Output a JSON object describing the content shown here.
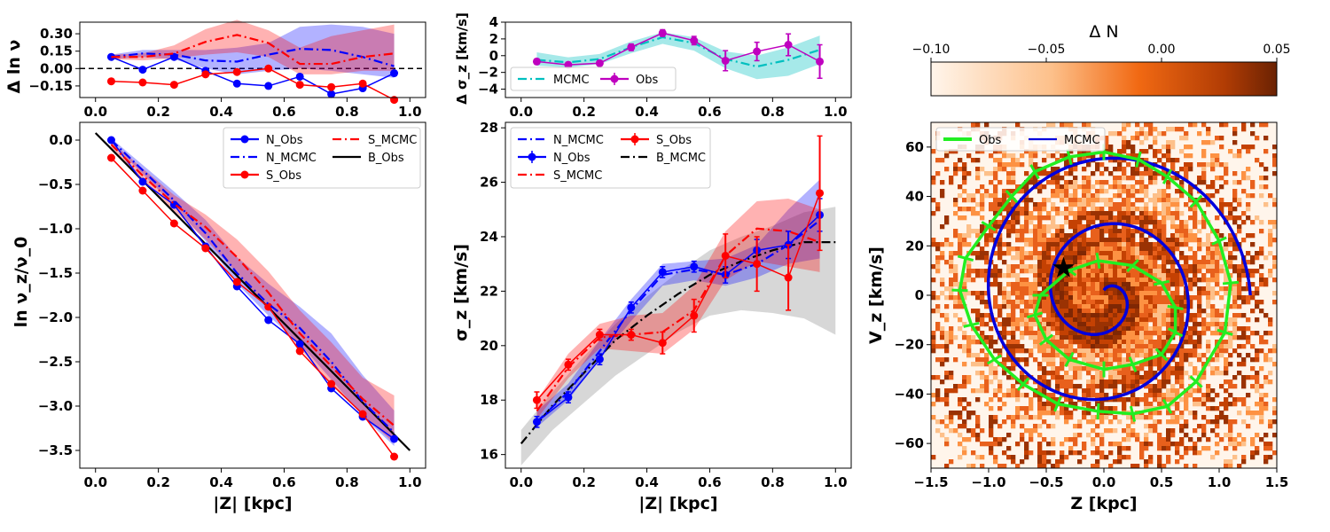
{
  "chart_data": [
    {
      "id": "dlnnu",
      "type": "line",
      "ylabel": "Δ ln ν",
      "xlim": [
        -0.05,
        1.05
      ],
      "ylim": [
        -0.25,
        0.4
      ],
      "xticks": [
        0.0,
        0.2,
        0.4,
        0.6,
        0.8,
        1.0
      ],
      "yticks": [
        -0.15,
        0.0,
        0.15,
        0.3
      ],
      "ytick_labels": [
        "−0.15",
        "0.00",
        "0.15",
        "0.30"
      ],
      "zero_line": "dashed black at y=0",
      "x": [
        0.05,
        0.15,
        0.25,
        0.35,
        0.45,
        0.55,
        0.65,
        0.75,
        0.85,
        0.95
      ],
      "series": [
        {
          "name": "N_Obs",
          "color": "#0000ff",
          "style": "solid-marker",
          "values": [
            0.1,
            -0.01,
            0.1,
            -0.02,
            -0.13,
            -0.15,
            -0.07,
            -0.22,
            -0.17,
            -0.04
          ]
        },
        {
          "name": "S_Obs",
          "color": "#ff0000",
          "style": "solid-marker",
          "values": [
            -0.11,
            -0.12,
            -0.14,
            -0.05,
            -0.03,
            0.0,
            -0.14,
            -0.16,
            -0.13,
            -0.27
          ]
        },
        {
          "name": "N_MCMC",
          "color": "#0000ff",
          "style": "dashdot",
          "values": [
            0.1,
            0.13,
            0.12,
            0.07,
            0.06,
            0.12,
            0.17,
            0.16,
            0.1,
            0.02
          ],
          "band_lo": [
            0.08,
            0.1,
            0.08,
            0.0,
            -0.05,
            -0.02,
            0.0,
            -0.02,
            -0.05,
            -0.08
          ],
          "band_hi": [
            0.12,
            0.16,
            0.16,
            0.16,
            0.18,
            0.22,
            0.36,
            0.38,
            0.36,
            0.3
          ]
        },
        {
          "name": "S_MCMC",
          "color": "#ff0000",
          "style": "dashdot",
          "values": [
            0.1,
            0.1,
            0.13,
            0.23,
            0.29,
            0.22,
            0.04,
            0.04,
            0.1,
            0.13
          ],
          "band_lo": [
            0.08,
            0.07,
            0.09,
            0.12,
            0.14,
            0.1,
            -0.05,
            -0.05,
            -0.02,
            -0.02
          ],
          "band_hi": [
            0.12,
            0.13,
            0.2,
            0.34,
            0.42,
            0.33,
            0.18,
            0.28,
            0.33,
            0.38
          ]
        }
      ]
    },
    {
      "id": "lnnu",
      "type": "line",
      "xlabel": "|Z| [kpc]",
      "ylabel": "ln ν_z/ν_0",
      "xlim": [
        -0.05,
        1.05
      ],
      "ylim": [
        -3.7,
        0.2
      ],
      "xticks": [
        0.0,
        0.2,
        0.4,
        0.6,
        0.8,
        1.0
      ],
      "yticks": [
        0.0,
        -0.5,
        -1.0,
        -1.5,
        -2.0,
        -2.5,
        -3.0,
        -3.5
      ],
      "ytick_labels": [
        "0.0",
        "−0.5",
        "−1.0",
        "−1.5",
        "−2.0",
        "−2.5",
        "−3.0",
        "−3.5"
      ],
      "legend_location": "top-right",
      "legend": [
        {
          "label": "N_Obs",
          "color": "#0000ff",
          "style": "solid-marker"
        },
        {
          "label": "N_MCMC",
          "color": "#0000ff",
          "style": "dashdot"
        },
        {
          "label": "S_Obs",
          "color": "#ff0000",
          "style": "solid-marker"
        },
        {
          "label": "S_MCMC",
          "color": "#ff0000",
          "style": "dashdot"
        },
        {
          "label": "B_Obs",
          "color": "#000000",
          "style": "solid"
        }
      ],
      "x": [
        0.05,
        0.15,
        0.25,
        0.35,
        0.45,
        0.55,
        0.65,
        0.75,
        0.85,
        0.95
      ],
      "series": [
        {
          "name": "B_Obs",
          "color": "#000000",
          "style": "solid",
          "x": [
            0.0,
            1.0
          ],
          "values": [
            0.08,
            -3.5
          ]
        },
        {
          "name": "N_Obs",
          "color": "#0000ff",
          "style": "solid-marker",
          "values": [
            0.0,
            -0.47,
            -0.73,
            -1.2,
            -1.65,
            -2.03,
            -2.3,
            -2.8,
            -3.12,
            -3.37
          ]
        },
        {
          "name": "S_Obs",
          "color": "#ff0000",
          "style": "solid-marker",
          "values": [
            -0.2,
            -0.57,
            -0.94,
            -1.22,
            -1.6,
            -1.88,
            -2.38,
            -2.75,
            -3.09,
            -3.57
          ]
        },
        {
          "name": "N_MCMC",
          "color": "#0000ff",
          "style": "dashdot",
          "values": [
            0.0,
            -0.34,
            -0.68,
            -1.05,
            -1.5,
            -1.85,
            -2.12,
            -2.5,
            -2.95,
            -3.3
          ],
          "band_lo": [
            -0.03,
            -0.38,
            -0.74,
            -1.14,
            -1.62,
            -1.98,
            -2.3,
            -2.7,
            -3.12,
            -3.45
          ],
          "band_hi": [
            0.02,
            -0.28,
            -0.58,
            -0.9,
            -1.32,
            -1.62,
            -1.88,
            -2.18,
            -2.65,
            -3.05
          ]
        },
        {
          "name": "S_MCMC",
          "color": "#ff0000",
          "style": "dashdot",
          "values": [
            -0.05,
            -0.4,
            -0.72,
            -0.98,
            -1.32,
            -1.72,
            -2.18,
            -2.55,
            -2.92,
            -3.22
          ],
          "band_lo": [
            -0.1,
            -0.48,
            -0.8,
            -1.12,
            -1.5,
            -1.9,
            -2.35,
            -2.75,
            -3.1,
            -3.42
          ],
          "band_hi": [
            -0.02,
            -0.32,
            -0.62,
            -0.84,
            -1.12,
            -1.48,
            -1.92,
            -2.28,
            -2.68,
            -2.88
          ]
        }
      ]
    },
    {
      "id": "dsigz",
      "type": "line",
      "ylabel": "Δ σ_z [km/s]",
      "xlim": [
        -0.05,
        1.05
      ],
      "ylim": [
        -5,
        4
      ],
      "xticks": [
        0.0,
        0.2,
        0.4,
        0.6,
        0.8,
        1.0
      ],
      "yticks": [
        -4,
        -2,
        0,
        2,
        4
      ],
      "ytick_labels": [
        "−4",
        "−2",
        "0",
        "2",
        "4"
      ],
      "legend_location": "bottom-left",
      "legend": [
        {
          "label": "MCMC",
          "color": "#00bfbf",
          "style": "dashdot"
        },
        {
          "label": "Obs",
          "color": "#bf00bf",
          "style": "solid-marker-err"
        }
      ],
      "x": [
        0.05,
        0.15,
        0.25,
        0.35,
        0.45,
        0.55,
        0.65,
        0.75,
        0.85,
        0.95
      ],
      "series": [
        {
          "name": "MCMC",
          "color": "#00bfbf",
          "style": "dashdot",
          "values": [
            -0.5,
            -0.8,
            -0.4,
            1.0,
            2.2,
            1.5,
            -0.4,
            -1.3,
            -0.5,
            0.7
          ],
          "band_lo": [
            -1.2,
            -1.4,
            -1.0,
            0.3,
            1.4,
            0.6,
            -1.5,
            -2.8,
            -2.4,
            -1.0
          ],
          "band_hi": [
            0.4,
            -0.2,
            0.2,
            1.7,
            2.8,
            2.2,
            0.5,
            0.0,
            1.0,
            2.4
          ]
        },
        {
          "name": "Obs",
          "color": "#bf00bf",
          "style": "solid-marker-err",
          "values": [
            -0.7,
            -1.1,
            -0.9,
            1.0,
            2.7,
            1.8,
            -0.6,
            0.5,
            1.3,
            -0.7
          ],
          "err": [
            0.3,
            0.3,
            0.3,
            0.4,
            0.4,
            0.5,
            1.2,
            1.1,
            1.3,
            2.0
          ]
        }
      ]
    },
    {
      "id": "sigz",
      "type": "line",
      "xlabel": "|Z| [kpc]",
      "ylabel": "σ_z [km/s]",
      "xlim": [
        -0.05,
        1.05
      ],
      "ylim": [
        15.5,
        28.2
      ],
      "xticks": [
        0.0,
        0.2,
        0.4,
        0.6,
        0.8,
        1.0
      ],
      "yticks": [
        16,
        18,
        20,
        22,
        24,
        26,
        28
      ],
      "ytick_labels": [
        "16",
        "18",
        "20",
        "22",
        "24",
        "26",
        "28"
      ],
      "legend_location": "top-left",
      "legend": [
        {
          "label": "N_MCMC",
          "color": "#0000ff",
          "style": "dashdot"
        },
        {
          "label": "N_Obs",
          "color": "#0000ff",
          "style": "solid-marker-err"
        },
        {
          "label": "S_MCMC",
          "color": "#ff0000",
          "style": "dashdot"
        },
        {
          "label": "S_Obs",
          "color": "#ff0000",
          "style": "solid-marker-err"
        },
        {
          "label": "B_MCMC",
          "color": "#000000",
          "style": "dashdot"
        }
      ],
      "x": [
        0.05,
        0.15,
        0.25,
        0.35,
        0.45,
        0.55,
        0.65,
        0.75,
        0.85,
        0.95
      ],
      "series": [
        {
          "name": "B_MCMC",
          "color": "#000000",
          "style": "dashdot",
          "x": [
            0.0,
            0.1,
            0.2,
            0.3,
            0.4,
            0.5,
            0.6,
            0.7,
            0.8,
            0.9,
            1.0
          ],
          "values": [
            16.4,
            17.8,
            19.0,
            20.2,
            21.1,
            21.9,
            22.6,
            23.1,
            23.5,
            23.8,
            23.8
          ],
          "band_lo": [
            15.6,
            16.9,
            17.9,
            18.9,
            19.7,
            20.5,
            21.1,
            21.3,
            21.2,
            21.0,
            20.4
          ],
          "band_hi": [
            16.9,
            18.3,
            19.6,
            20.8,
            21.8,
            22.7,
            23.5,
            24.0,
            24.4,
            24.9,
            25.1
          ]
        },
        {
          "name": "N_MCMC",
          "color": "#0000ff",
          "style": "dashdot",
          "values": [
            17.2,
            18.3,
            19.8,
            21.3,
            22.6,
            22.8,
            22.6,
            23.0,
            23.7,
            24.6
          ],
          "band_lo": [
            17.0,
            18.0,
            19.5,
            20.9,
            22.2,
            22.4,
            22.2,
            22.5,
            23.0,
            23.2
          ],
          "band_hi": [
            17.6,
            18.6,
            20.2,
            21.7,
            23.0,
            23.1,
            23.2,
            23.7,
            25.0,
            26.1
          ]
        },
        {
          "name": "S_MCMC",
          "color": "#ff0000",
          "style": "dashdot",
          "values": [
            17.6,
            19.2,
            20.3,
            20.4,
            20.5,
            21.3,
            23.3,
            24.3,
            24.2,
            23.8
          ],
          "band_lo": [
            17.3,
            18.8,
            19.9,
            19.8,
            19.7,
            20.6,
            22.4,
            23.1,
            22.9,
            22.7
          ],
          "band_hi": [
            18.0,
            19.7,
            20.8,
            21.1,
            21.2,
            22.2,
            24.2,
            25.3,
            25.4,
            25.0
          ]
        },
        {
          "name": "N_Obs",
          "color": "#0000ff",
          "style": "solid-marker-err",
          "values": [
            17.2,
            18.1,
            19.5,
            21.4,
            22.7,
            22.9,
            22.6,
            23.5,
            23.7,
            24.8
          ],
          "err": [
            0.2,
            0.2,
            0.2,
            0.2,
            0.2,
            0.2,
            0.3,
            0.4,
            0.5,
            0.6
          ]
        },
        {
          "name": "S_Obs",
          "color": "#ff0000",
          "style": "solid-marker-err",
          "values": [
            18.0,
            19.3,
            20.4,
            20.4,
            20.1,
            21.1,
            23.3,
            23.0,
            22.5,
            25.6
          ],
          "err": [
            0.3,
            0.2,
            0.2,
            0.2,
            0.4,
            0.6,
            0.8,
            1.0,
            1.2,
            2.1
          ]
        }
      ]
    },
    {
      "id": "phasespiral",
      "type": "heatmap",
      "xlabel": "Z [kpc]",
      "ylabel": "V_z [km/s]",
      "xlim": [
        -1.5,
        1.5
      ],
      "ylim": [
        -70,
        70
      ],
      "xticks": [
        -1.5,
        -1.0,
        -0.5,
        0.0,
        0.5,
        1.0,
        1.5
      ],
      "xtick_labels": [
        "−1.5",
        "−1.0",
        "−0.5",
        "0.0",
        "0.5",
        "1.0",
        "1.5"
      ],
      "yticks": [
        -60,
        -40,
        -20,
        0,
        20,
        40,
        60
      ],
      "ytick_labels": [
        "−60",
        "−40",
        "−20",
        "0",
        "20",
        "40",
        "60"
      ],
      "legend_location": "top-left",
      "legend": [
        {
          "label": "Obs",
          "color": "#22ee22",
          "style": "solid"
        },
        {
          "label": "MCMC",
          "color": "#0000dd",
          "style": "solid"
        }
      ],
      "star_marker": {
        "z": -0.35,
        "vz": 11
      },
      "mcmc_spiral": {
        "center_z": 0.0,
        "center_vz": 0.0,
        "z_per_kpc_scale": 1.0,
        "turns": 2.25
      },
      "obs_polygons": [
        {
          "z": [
            -0.55,
            -0.3,
            -0.05,
            0.25,
            0.5,
            0.62,
            0.62,
            0.5,
            0.25,
            0.0,
            -0.3,
            -0.5,
            -0.6
          ],
          "vz": [
            0,
            10,
            14,
            12,
            5,
            -5,
            -15,
            -24,
            -28,
            -30,
            -26,
            -18,
            -8
          ]
        },
        {
          "z": [
            -1.2,
            -1.0,
            -0.8,
            -0.6,
            -0.3,
            0.0,
            0.3,
            0.55,
            0.8,
            1.0,
            1.1,
            1.05,
            0.8,
            0.55,
            0.25,
            -0.05,
            -0.4,
            -0.7,
            -0.95,
            -1.15,
            -1.25
          ],
          "vz": [
            15,
            28,
            40,
            50,
            56,
            58,
            55,
            48,
            38,
            22,
            5,
            -15,
            -35,
            -45,
            -48,
            -47,
            -44,
            -36,
            -26,
            -12,
            2
          ]
        }
      ],
      "colorbar": {
        "title": "Δ N",
        "range": [
          -0.1,
          0.05
        ],
        "ticks": [
          -0.1,
          -0.05,
          0.0,
          0.05
        ],
        "tick_labels": [
          "−0.10",
          "−0.05",
          "0.00",
          "0.05"
        ],
        "colormap": "Oranges",
        "color_low": "#fff5eb",
        "color_mid": "#f16913",
        "color_high": "#7f2704"
      }
    }
  ]
}
